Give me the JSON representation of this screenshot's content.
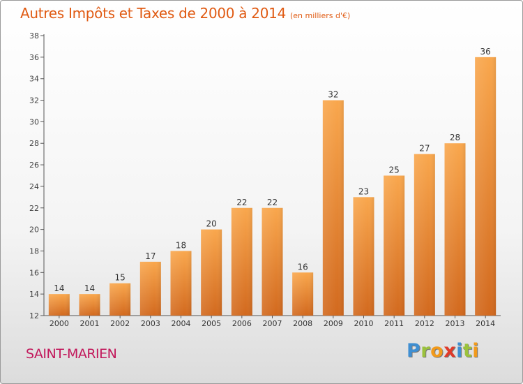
{
  "title": "Autres Impôts et Taxes de 2000 à 2014",
  "subtitle": "(en milliers d'€)",
  "commune": "SAINT-MARIEN",
  "logo": {
    "text": "Proxiti",
    "letters": [
      {
        "ch": "P",
        "color": "#3f8fd2"
      },
      {
        "ch": "r",
        "color": "#9bc23c"
      },
      {
        "ch": "o",
        "color": "#f29a1b"
      },
      {
        "ch": "x",
        "color": "#e03a2a"
      },
      {
        "ch": "i",
        "color": "#3f8fd2"
      },
      {
        "ch": "t",
        "color": "#9bc23c"
      },
      {
        "ch": "i",
        "color": "#f29a1b"
      }
    ]
  },
  "chart_data": {
    "type": "bar",
    "title": "Autres Impôts et Taxes de 2000 à 2014",
    "subtitle": "(en milliers d'€)",
    "categories": [
      "2000",
      "2001",
      "2002",
      "2003",
      "2004",
      "2005",
      "2006",
      "2007",
      "2008",
      "2009",
      "2010",
      "2011",
      "2012",
      "2013",
      "2014"
    ],
    "values": [
      14,
      14,
      15,
      17,
      18,
      20,
      22,
      22,
      16,
      32,
      23,
      25,
      27,
      28,
      36
    ],
    "ylim": [
      12,
      38
    ],
    "yticks": [
      12,
      14,
      16,
      18,
      20,
      22,
      24,
      26,
      28,
      30,
      32,
      34,
      36,
      38
    ],
    "grid": false,
    "bar_color": "#e8802a",
    "xlabel": "",
    "ylabel": ""
  }
}
